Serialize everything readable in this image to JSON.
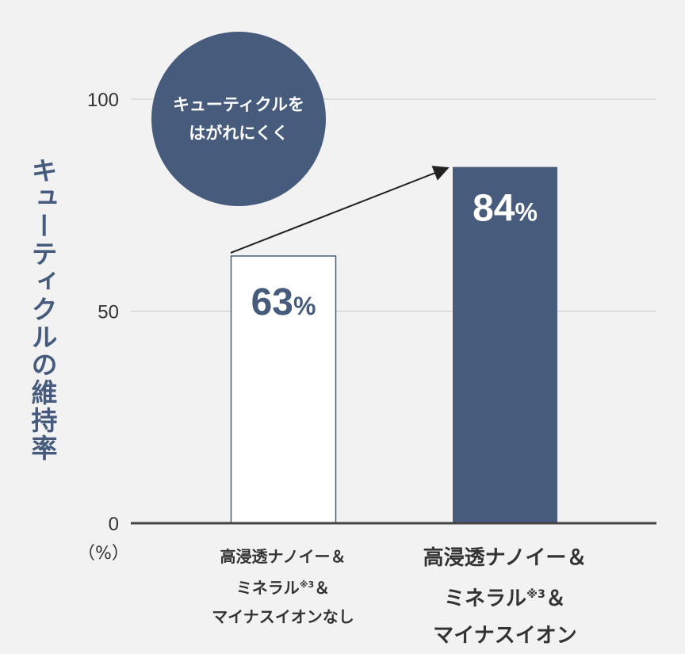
{
  "chart_data": {
    "type": "bar",
    "ylabel": "キューティクルの維持率",
    "unit_label": "（%）",
    "ylim": [
      0,
      100
    ],
    "yticks": [
      0,
      50,
      100
    ],
    "grid": true,
    "categories": [
      {
        "lines": [
          "高浸透ナノイー＆",
          "ミネラル",
          "マイナスイオンなし"
        ],
        "sup": "※3",
        "amp": "＆"
      },
      {
        "lines": [
          "高浸透ナノイー＆",
          "ミネラル",
          "マイナスイオン"
        ],
        "sup": "※3",
        "amp": "＆"
      }
    ],
    "values": [
      63,
      84
    ],
    "value_labels": [
      "63",
      "84"
    ],
    "percent_sign": "%",
    "annotation": {
      "line1": "キューティクルを",
      "line2": "はがれにくく"
    },
    "colors": {
      "bar_outline": "#475b7c",
      "bar_fill": "#475b7c",
      "axis": "#444444",
      "grid": "#cccccc"
    }
  }
}
